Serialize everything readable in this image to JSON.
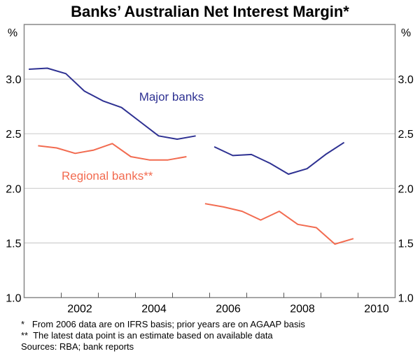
{
  "chart_data": {
    "type": "line",
    "title": "Banks’ Australian Net Interest Margin*",
    "ylabel_left": "%",
    "ylabel_right": "%",
    "ylim": [
      1.0,
      3.5
    ],
    "yticks": [
      "1.0",
      "1.5",
      "2.0",
      "2.5",
      "3.0"
    ],
    "xlim": [
      2001,
      2011
    ],
    "xticks": [
      "2002",
      "2004",
      "2006",
      "2008",
      "2010"
    ],
    "grid": true,
    "series": [
      {
        "name": "Major banks",
        "color": "#2e3192",
        "segments": [
          {
            "x": [
              2001.125,
              2001.625,
              2002.125,
              2002.625,
              2003.125,
              2003.625,
              2004.125,
              2004.625,
              2005.125,
              2005.625
            ],
            "y": [
              3.09,
              3.1,
              3.05,
              2.89,
              2.8,
              2.74,
              2.61,
              2.48,
              2.45,
              2.48
            ]
          },
          {
            "x": [
              2006.125,
              2006.625,
              2007.125,
              2007.625,
              2008.125,
              2008.625,
              2009.125,
              2009.625
            ],
            "y": [
              2.38,
              2.3,
              2.31,
              2.23,
              2.13,
              2.18,
              2.31,
              2.42
            ]
          }
        ]
      },
      {
        "name": "Regional banks**",
        "color": "#f26b50",
        "segments": [
          {
            "x": [
              2001.375,
              2001.875,
              2002.375,
              2002.875,
              2003.375,
              2003.875,
              2004.375,
              2004.875,
              2005.375
            ],
            "y": [
              2.39,
              2.37,
              2.32,
              2.35,
              2.41,
              2.29,
              2.26,
              2.26,
              2.29
            ]
          },
          {
            "x": [
              2005.875,
              2006.375,
              2006.875,
              2007.375,
              2007.875,
              2008.375,
              2008.875,
              2009.375,
              2009.875
            ],
            "y": [
              1.86,
              1.83,
              1.79,
              1.71,
              1.79,
              1.67,
              1.64,
              1.49,
              1.54
            ]
          }
        ]
      }
    ]
  },
  "footnotes": [
    "*   From 2006 data are on IFRS basis; prior years are on AGAAP basis",
    "**  The latest data point is an estimate based on available data",
    "Sources: RBA; bank reports"
  ]
}
